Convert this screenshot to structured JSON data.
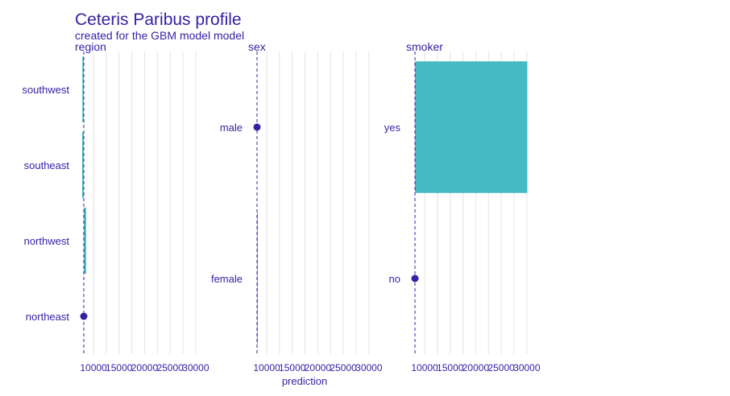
{
  "header": {
    "title": "Ceteris Paribus profile",
    "subtitle": "created for the GBM model model"
  },
  "colors": {
    "bar": "#46bac2",
    "point": "#371ea3",
    "text": "#371ea3",
    "grid": "#e4e4e4",
    "reference_line": "#371ea3"
  },
  "chart_data": {
    "type": "bar",
    "xlabel": "prediction",
    "xlim": [
      8000,
      32000
    ],
    "x_ticks": [
      10000,
      15000,
      20000,
      25000,
      30000
    ],
    "x_tick_labels": [
      "10000",
      "15000",
      "20000",
      "25000",
      "30000"
    ],
    "observed_prediction": 8100,
    "grid": true,
    "panels": [
      {
        "name": "region",
        "categories": [
          "northeast",
          "northwest",
          "southeast",
          "southwest"
        ],
        "values": [
          8100,
          8550,
          7780,
          7820
        ],
        "observed": "northeast"
      },
      {
        "name": "sex",
        "categories": [
          "female",
          "male"
        ],
        "values": [
          8100,
          8100
        ],
        "observed": "male"
      },
      {
        "name": "smoker",
        "categories": [
          "no",
          "yes"
        ],
        "values": [
          8100,
          30100
        ],
        "observed": "no"
      }
    ]
  }
}
